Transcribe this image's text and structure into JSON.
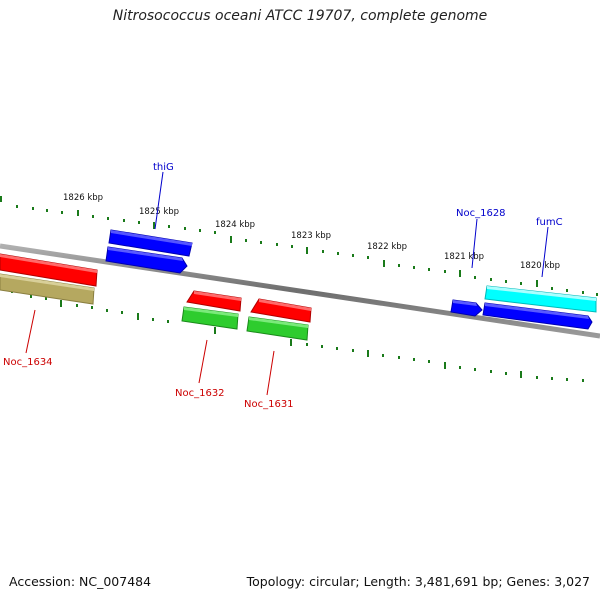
{
  "title": "Nitrosococcus oceani ATCC 19707, complete genome",
  "footer": {
    "accession": "Accession: NC_007484",
    "topology": "Topology: circular; Length: 3,481,691 bp; Genes: 3,027"
  },
  "scale_labels": [
    "1826 kbp",
    "1825 kbp",
    "1824 kbp",
    "1823 kbp",
    "1822 kbp",
    "1821 kbp",
    "1820 kbp"
  ],
  "gene_labels": {
    "thiG": "thiG",
    "Noc_1628": "Noc_1628",
    "fumC": "fumC",
    "Noc_1634": "Noc_1634",
    "Noc_1632": "Noc_1632",
    "Noc_1631": "Noc_1631"
  },
  "colors": {
    "backbone": "#808080",
    "tick": "#1a7a1a",
    "forward_gene": "#0000ff",
    "reverse_gene": "#ff0000",
    "reverse_gene_green": "#2ecc2e",
    "reverse_gene_olive": "#b5a860",
    "forward_gene_cyan": "#00ffff",
    "label_blue": "#0000cc",
    "label_red": "#cc0000"
  }
}
